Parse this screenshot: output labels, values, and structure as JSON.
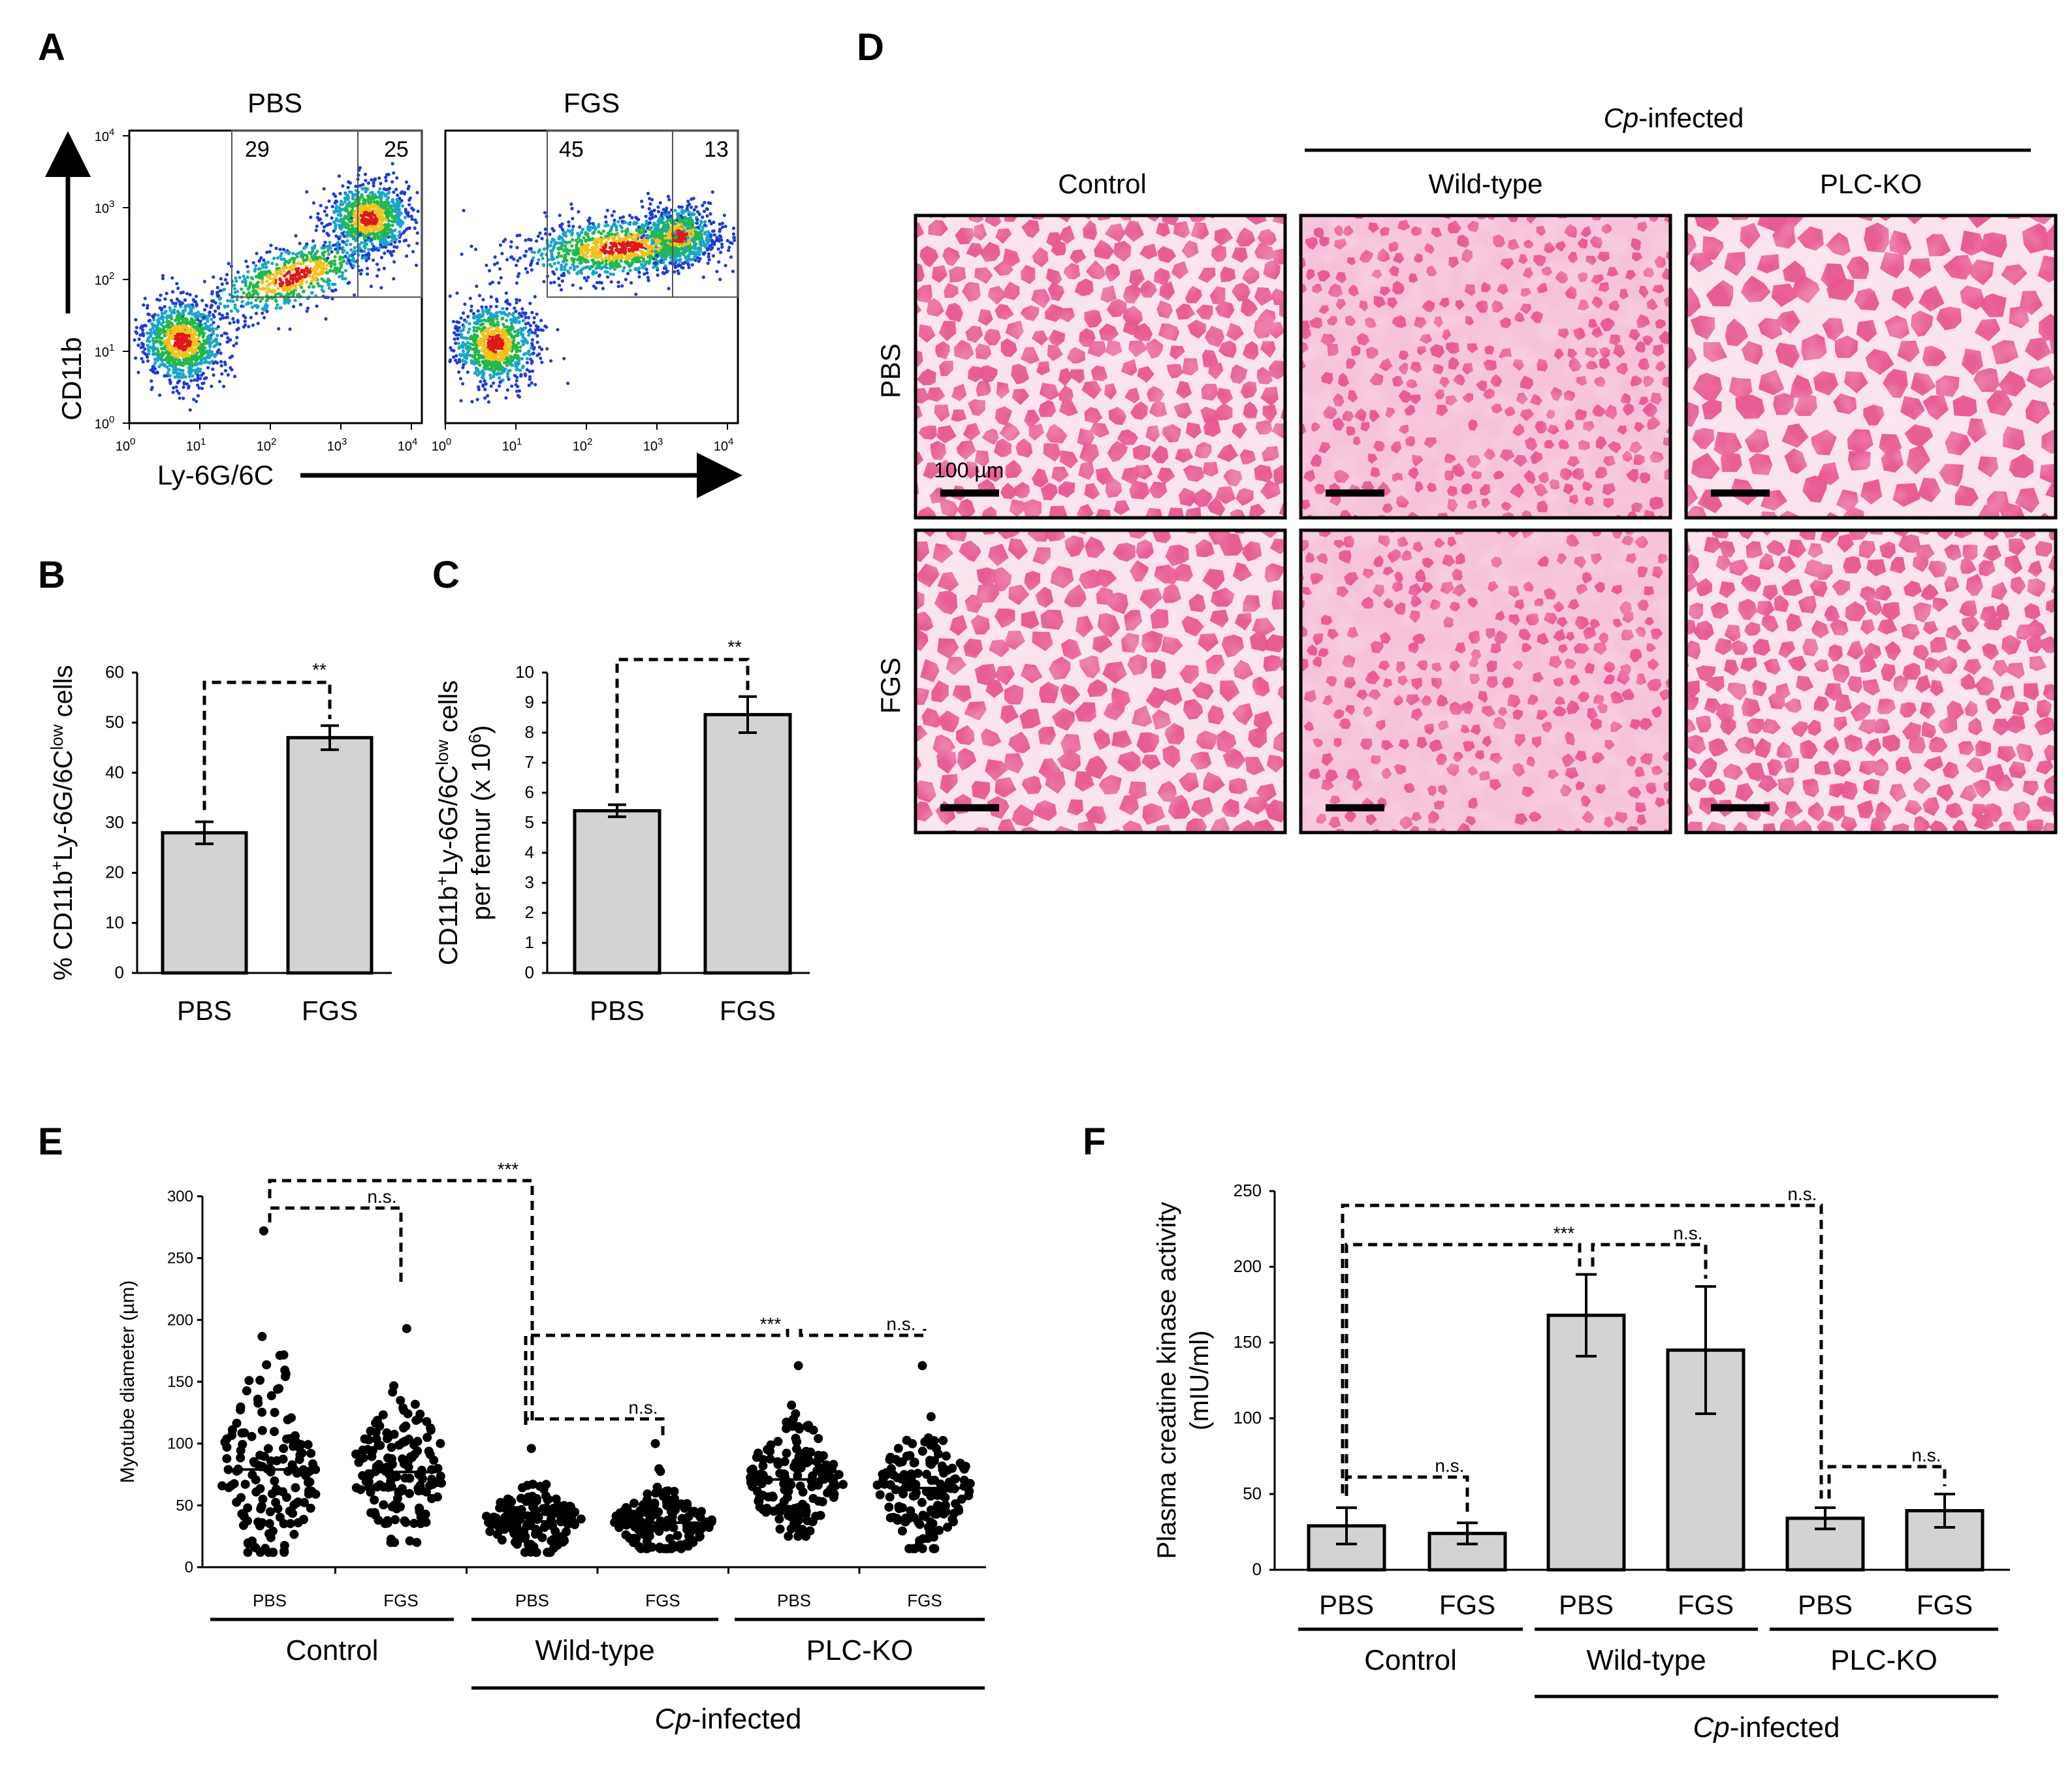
{
  "panels": {
    "A": "A",
    "B": "B",
    "C": "C",
    "D": "D",
    "E": "E",
    "F": "F"
  },
  "flow": {
    "titles": [
      "PBS",
      "FGS"
    ],
    "y_label": "CD11b",
    "x_label": "Ly-6G/6C",
    "ticks_base": "10",
    "tick_exps": [
      "0",
      "1",
      "2",
      "3",
      "4"
    ],
    "gates": [
      [
        "29",
        "25"
      ],
      [
        "45",
        "13"
      ]
    ]
  },
  "histo": {
    "group_header": "Cp-infected",
    "group_header_italic": "Cp",
    "group_header_rest": "-infected",
    "columns": [
      "Control",
      "Wild-type",
      "PLC-KO"
    ],
    "rows": [
      "PBS",
      "FGS"
    ],
    "scale_bar": "100 µm",
    "colors": {
      "stain": "#e8558f",
      "light": "#f6c2da",
      "bg": "#fbe3ee"
    }
  },
  "chart_data": [
    {
      "id": "B",
      "type": "bar",
      "categories": [
        "PBS",
        "FGS"
      ],
      "values": [
        28,
        47
      ],
      "errors": [
        2.2,
        2.4
      ],
      "ylabel": "% CD11b+Ly-6G/6Clow cells",
      "ylabel_parts": [
        "% CD11b",
        "+",
        "Ly-6G/6C",
        "low",
        " cells"
      ],
      "ylim": [
        0,
        60
      ],
      "yticks": [
        "0",
        "10",
        "20",
        "30",
        "40",
        "50",
        "60"
      ],
      "significance": [
        {
          "pair": [
            0,
            1
          ],
          "label": "**"
        }
      ]
    },
    {
      "id": "C",
      "type": "bar",
      "categories": [
        "PBS",
        "FGS"
      ],
      "values": [
        5.4,
        8.6
      ],
      "errors": [
        0.2,
        0.6
      ],
      "ylabel": "CD11b+Ly-6G/6Clow cells per femur (x 106)",
      "ylabel_parts": [
        "CD11b",
        "+",
        "Ly-6G/6C",
        "low",
        " cells"
      ],
      "ylabel_line2": [
        "per femur (x 10",
        "6",
        ")"
      ],
      "ylim": [
        0,
        10
      ],
      "yticks": [
        "0",
        "1",
        "2",
        "3",
        "4",
        "5",
        "6",
        "7",
        "8",
        "9",
        "10"
      ],
      "significance": [
        {
          "pair": [
            0,
            1
          ],
          "label": "**"
        }
      ]
    },
    {
      "id": "E",
      "type": "scatter",
      "ylabel": "Myotube diameter (µm)",
      "ylim": [
        0,
        300
      ],
      "yticks": [
        "0",
        "50",
        "100",
        "150",
        "200",
        "250",
        "300"
      ],
      "categories": [
        "PBS",
        "FGS",
        "PBS",
        "FGS",
        "PBS",
        "FGS"
      ],
      "groups": [
        "Control",
        "Wild-type",
        "PLC-KO"
      ],
      "super_group": "Cp-infected",
      "means": [
        79,
        77,
        37,
        36,
        71,
        64
      ],
      "ranges": [
        [
          12,
          272
        ],
        [
          20,
          193
        ],
        [
          12,
          96
        ],
        [
          15,
          100
        ],
        [
          25,
          163
        ],
        [
          15,
          163
        ]
      ],
      "significance": [
        {
          "from": 0,
          "to": 1,
          "label": "n.s."
        },
        {
          "from": 0,
          "to": 2,
          "label": "***"
        },
        {
          "from": 2,
          "to": 3,
          "label": "n.s."
        },
        {
          "from": 2,
          "to": 4,
          "label": "***"
        },
        {
          "from": 4,
          "to": 5,
          "label": "n.s."
        }
      ]
    },
    {
      "id": "F",
      "type": "bar",
      "categories": [
        "PBS",
        "FGS",
        "PBS",
        "FGS",
        "PBS",
        "FGS"
      ],
      "groups": [
        "Control",
        "Wild-type",
        "PLC-KO"
      ],
      "super_group": "Cp-infected",
      "values": [
        29,
        24,
        168,
        145,
        34,
        39
      ],
      "errors": [
        12,
        7,
        27,
        42,
        7,
        11
      ],
      "ylabel": "Plasma creatine kinase activity",
      "ylabel2": "(mIU/ml)",
      "ylim": [
        0,
        250
      ],
      "yticks": [
        "0",
        "50",
        "100",
        "150",
        "200",
        "250"
      ],
      "significance": [
        {
          "from": 0,
          "to": 1,
          "label": "n.s."
        },
        {
          "from": 0,
          "to": 2,
          "label": "***"
        },
        {
          "from": 2,
          "to": 3,
          "label": "n.s."
        },
        {
          "from": 0,
          "to": 4,
          "label": "n.s."
        },
        {
          "from": 4,
          "to": 5,
          "label": "n.s."
        }
      ]
    }
  ]
}
